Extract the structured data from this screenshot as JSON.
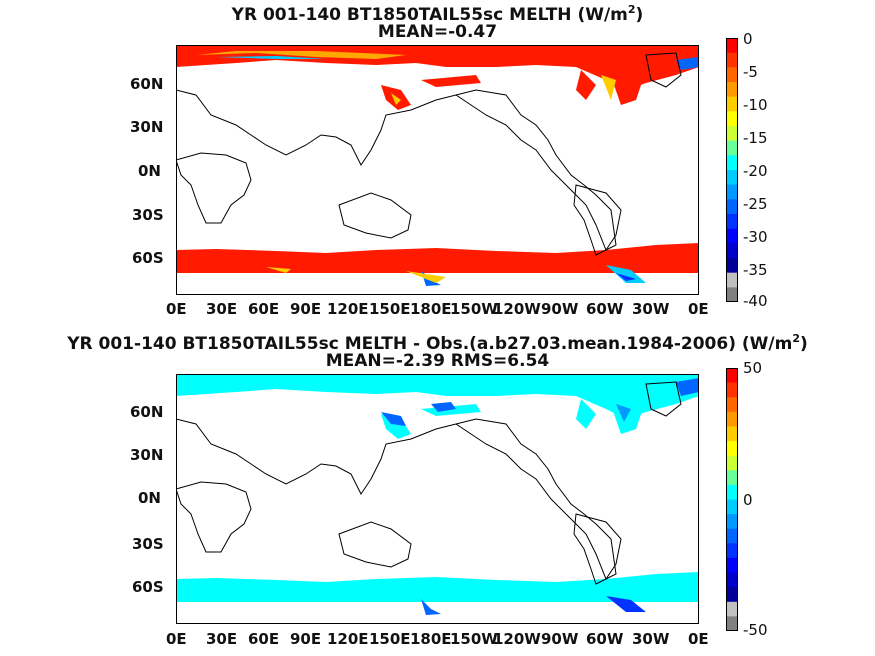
{
  "panels": [
    {
      "title_line1": "YR 001-140 BT1850TAIL55sc  MELTH (W/m",
      "title_sup": "2",
      "title_line1_end": ")",
      "title_line2": "MEAN=-0.47",
      "colorbar": {
        "ticks": [
          "0",
          "-5",
          "-10",
          "-15",
          "-20",
          "-25",
          "-30",
          "-35",
          "-40"
        ],
        "colors": [
          "#ff0000",
          "#ff3300",
          "#ff6600",
          "#ff9900",
          "#ffcc00",
          "#ffff00",
          "#ccff33",
          "#66ff99",
          "#00ffff",
          "#00ccff",
          "#0099ff",
          "#0066ff",
          "#0033ff",
          "#0000ff",
          "#0000cc",
          "#000099",
          "#c0c0c0",
          "#808080"
        ]
      }
    },
    {
      "title_line1": "YR 001-140 BT1850TAIL55sc MELTH - Obs.(a.b27.03.mean.1984-2006) (W/m",
      "title_sup": "2",
      "title_line1_end": ")",
      "title_line2": "MEAN=-2.39 RMS=6.54",
      "colorbar": {
        "ticks": [
          "50",
          "0",
          "-50"
        ],
        "colors": [
          "#ff0000",
          "#ff3300",
          "#ff6600",
          "#ff9900",
          "#ffcc00",
          "#ffff00",
          "#ccff33",
          "#66ff99",
          "#00ffff",
          "#00ccff",
          "#0099ff",
          "#0066ff",
          "#0033ff",
          "#0000ff",
          "#0000cc",
          "#000099",
          "#c0c0c0",
          "#808080"
        ]
      }
    }
  ],
  "lat_labels": [
    "60N",
    "30N",
    "0N",
    "30S",
    "60S"
  ],
  "lon_labels": [
    "0E",
    "30E",
    "60E",
    "90E",
    "120E",
    "150E",
    "180E",
    "150W",
    "120W",
    "90W",
    "60W",
    "30W",
    "0E"
  ],
  "colors": {
    "melt_north": "#ff1a00",
    "melt_south": "#ff1a00",
    "melt_edge": "#ffcc00",
    "diff_fill": "#00ffff",
    "diff_edge": "#0066ff",
    "land_line": "#000000"
  }
}
